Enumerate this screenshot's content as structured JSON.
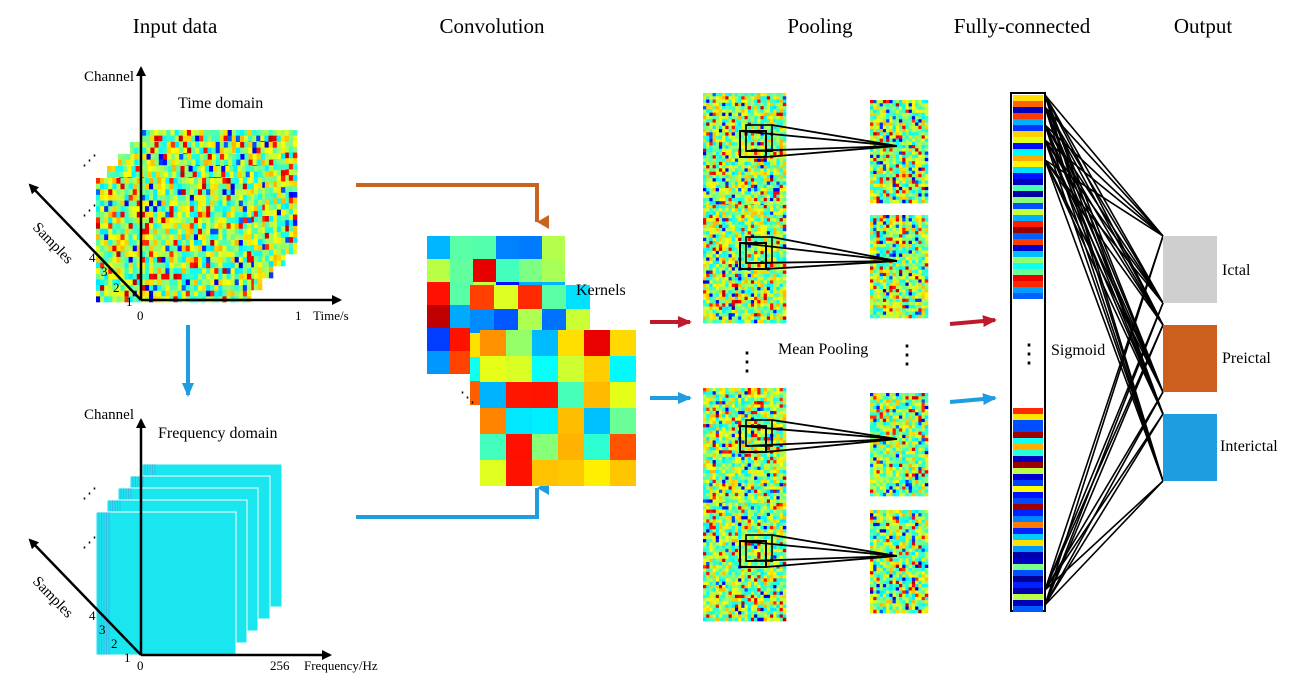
{
  "headers": {
    "input": "Input data",
    "convolution": "Convolution",
    "pooling": "Pooling",
    "fully_connected": "Fully-connected",
    "output": "Output"
  },
  "time_panel": {
    "y_axis": "Channel",
    "domain": "Time domain",
    "samples_axis": "Samples",
    "sample_ticks": [
      "1",
      "2",
      "3",
      "4"
    ],
    "x_start": "0",
    "x_end": "1",
    "x_unit": "Time/s"
  },
  "freq_panel": {
    "y_axis": "Channel",
    "domain": "Frequency domain",
    "samples_axis": "Samples",
    "sample_ticks": [
      "1",
      "2",
      "3",
      "4"
    ],
    "x_start": "0",
    "x_end": "256",
    "x_unit": "Frequency/Hz"
  },
  "convolution": {
    "kernels_label": "Kernels"
  },
  "pooling": {
    "label": "Mean Pooling"
  },
  "fully_connected": {
    "activation": "Sigmoid"
  },
  "outputs": [
    {
      "label": "Ictal",
      "color": "#cfcfcf"
    },
    {
      "label": "Preictal",
      "color": "#cc5f1e"
    },
    {
      "label": "Interictal",
      "color": "#1e9ee0"
    }
  ],
  "colors": {
    "orange_arrow": "#c9631f",
    "red_arrow": "#c0192b",
    "blue_arrow": "#1e9ee0",
    "freq_fill": "#19e6ee"
  }
}
